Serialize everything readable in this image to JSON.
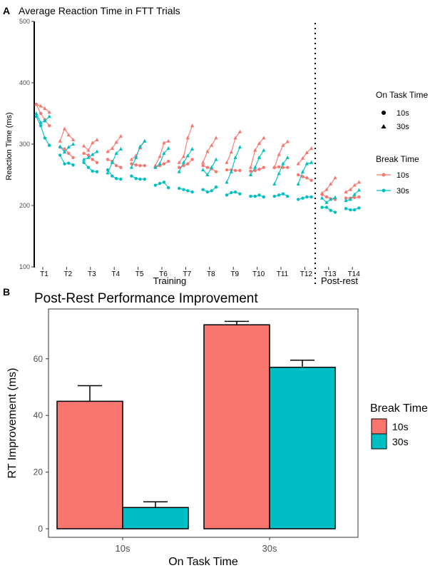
{
  "colors": {
    "break_10s": "#F8766D",
    "break_30s": "#00BFC4",
    "axis": "#000000",
    "tick_text": "#4D4D4D",
    "bar_outline": "#000000"
  },
  "panel_a": {
    "label": "A",
    "title": "Average Reaction Time in FTT Trials",
    "ylabel": "Reaction Time (ms)",
    "xlabel_training": "Training",
    "xlabel_postrest": "Post-rest",
    "legend_shape_title": "On Task Time",
    "legend_color_title": "Break Time",
    "legend_shape_items": [
      "10s",
      "30s"
    ],
    "legend_color_items": [
      "10s",
      "30s"
    ]
  },
  "panel_b": {
    "label": "B",
    "title": "Post-Rest Performance Improvement",
    "legend_title": "Break Time",
    "legend_items": [
      "10s",
      "30s"
    ]
  },
  "chart_data": [
    {
      "type": "line",
      "title": "Average Reaction Time in FTT Trials",
      "xlabel": "Training | Post-rest",
      "ylabel": "Reaction Time (ms)",
      "ylim": [
        100,
        500
      ],
      "yticks": [
        100,
        200,
        300,
        400,
        500
      ],
      "trials": [
        "T1",
        "T2",
        "T3",
        "T4",
        "T5",
        "T6",
        "T7",
        "T8",
        "T9",
        "T10",
        "T11",
        "T12",
        "T13",
        "T14"
      ],
      "rest_separator_after": "T12",
      "points_per_trial": 4,
      "series": [
        {
          "name": "On Task 10s / Break 10s",
          "on_task": "10s",
          "break": "10s",
          "marker": "circle",
          "values": [
            [
              365,
              350,
              340,
              330
            ],
            [
              295,
              292,
              285,
              278
            ],
            [
              285,
              282,
              275,
              270
            ],
            [
              275,
              272,
              265,
              262
            ],
            [
              268,
              266,
              265,
              265
            ],
            [
              262,
              265,
              268,
              272
            ],
            [
              262,
              265,
              268,
              275
            ],
            [
              265,
              262,
              260,
              255
            ],
            [
              258,
              258,
              257,
              257
            ],
            [
              256,
              257,
              259,
              262
            ],
            [
              262,
              263,
              262,
              262
            ],
            [
              250,
              247,
              245,
              241
            ],
            [
              218,
              214,
              211,
              210
            ],
            [
              212,
              212,
              213,
              214
            ]
          ]
        },
        {
          "name": "On Task 30s / Break 10s",
          "on_task": "30s",
          "break": "10s",
          "marker": "triangle",
          "values": [
            [
              365,
              362,
              358,
              352
            ],
            [
              305,
              325,
              315,
              307
            ],
            [
              297,
              290,
              302,
              307
            ],
            [
              288,
              293,
              303,
              313
            ],
            [
              275,
              281,
              294,
              305
            ],
            [
              265,
              280,
              302,
              305
            ],
            [
              270,
              280,
              310,
              330
            ],
            [
              270,
              288,
              298,
              310
            ],
            [
              270,
              287,
              310,
              320
            ],
            [
              262,
              290,
              301,
              310
            ],
            [
              262,
              283,
              298,
              304
            ],
            [
              268,
              277,
              286,
              293
            ],
            [
              220,
              226,
              235,
              245
            ],
            [
              222,
              226,
              233,
              238
            ]
          ]
        },
        {
          "name": "On Task 10s / Break 30s",
          "on_task": "10s",
          "break": "30s",
          "marker": "circle",
          "values": [
            [
              345,
              330,
              310,
              298
            ],
            [
              282,
              268,
              269,
              266
            ],
            [
              270,
              262,
              256,
              255
            ],
            [
              258,
              248,
              244,
              243
            ],
            [
              248,
              244,
              243,
              243
            ],
            [
              233,
              236,
              238,
              229
            ],
            [
              228,
              226,
              224,
              222
            ],
            [
              226,
              222,
              224,
              230
            ],
            [
              217,
              221,
              222,
              219
            ],
            [
              215,
              215,
              217,
              214
            ],
            [
              215,
              217,
              219,
              215
            ],
            [
              210,
              212,
              214,
              214
            ],
            [
              197,
              197,
              192,
              189
            ],
            [
              195,
              193,
              193,
              196
            ]
          ]
        },
        {
          "name": "On Task 30s / Break 30s",
          "on_task": "30s",
          "break": "30s",
          "marker": "triangle",
          "values": [
            [
              350,
              335,
              338,
              345
            ],
            [
              296,
              287,
              295,
              300
            ],
            [
              275,
              278,
              283,
              288
            ],
            [
              253,
              270,
              285,
              292
            ],
            [
              262,
              278,
              296,
              305
            ],
            [
              262,
              268,
              285,
              293
            ],
            [
              255,
              270,
              281,
              292
            ],
            [
              258,
              250,
              262,
              275
            ],
            [
              238,
              255,
              278,
              295
            ],
            [
              250,
              262,
              278,
              290
            ],
            [
              235,
              252,
              268,
              278
            ],
            [
              235,
              255,
              268,
              270
            ],
            [
              212,
              205,
              210,
              213
            ],
            [
              208,
              210,
              218,
              225
            ]
          ]
        }
      ]
    },
    {
      "type": "bar",
      "title": "Post-Rest Performance Improvement",
      "xlabel": "On Task Time",
      "ylabel": "RT Improvement (ms)",
      "ylim": [
        0,
        75
      ],
      "yticks": [
        0,
        20,
        40,
        60
      ],
      "categories": [
        "10s",
        "30s"
      ],
      "legend_title": "Break Time",
      "series": [
        {
          "name": "10s",
          "values": [
            45,
            72
          ],
          "errors": [
            5.5,
            1.2
          ]
        },
        {
          "name": "30s",
          "values": [
            7.5,
            57
          ],
          "errors": [
            2.0,
            2.5
          ]
        }
      ]
    }
  ]
}
